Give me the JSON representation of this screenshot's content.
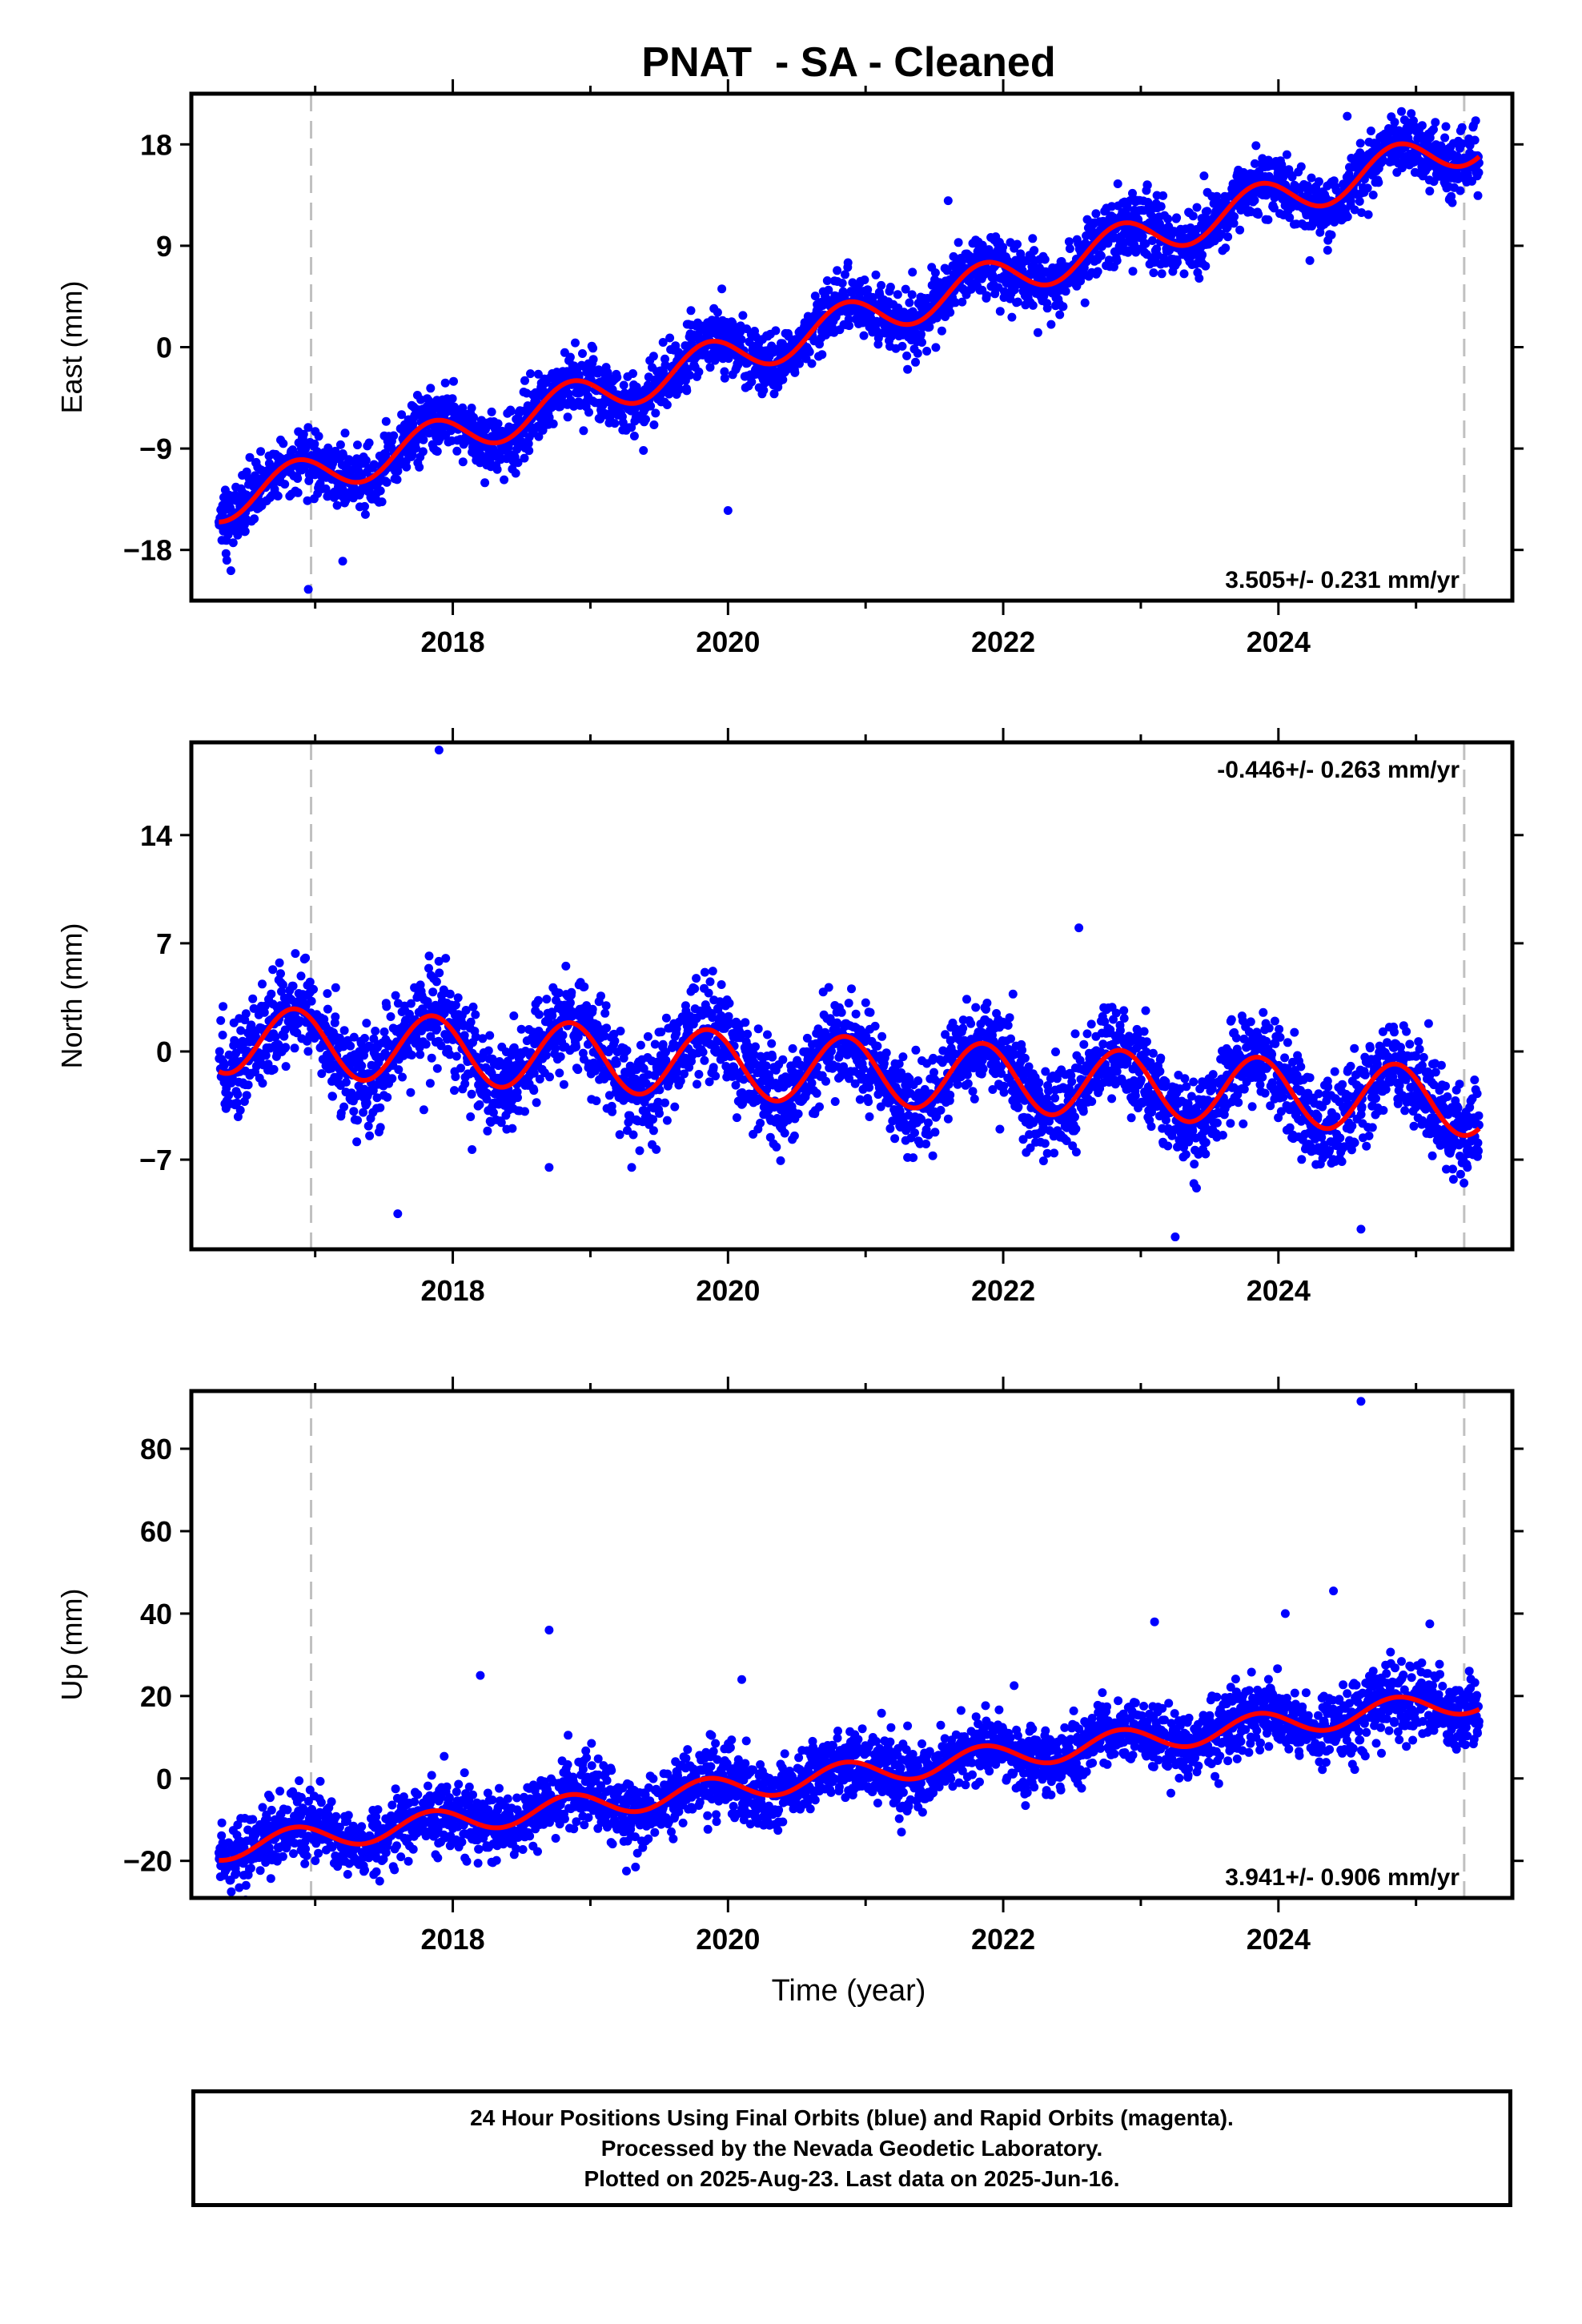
{
  "title": "PNAT  - SA - Cleaned",
  "xlabel": "Time (year)",
  "colors": {
    "points": "#0000ff",
    "fit": "#ff0000",
    "breaks": "#c0c0c0",
    "frame": "#000000"
  },
  "footer": {
    "line1": "24 Hour Positions Using Final Orbits (blue) and Rapid Orbits (magenta).",
    "line2": "Processed by the Nevada Geodetic Laboratory.",
    "line3": "Plotted on 2025-Aug-23. Last data on 2025-Jun-16."
  },
  "chart_data": [
    {
      "type": "scatter",
      "component": "east",
      "ylabel": "East (mm)",
      "xlim": [
        2016.1,
        2025.7
      ],
      "ylim": [
        -22.5,
        22.5
      ],
      "yticks": [
        -18,
        -9,
        0,
        9,
        18
      ],
      "xticks": [
        2018,
        2020,
        2022,
        2024
      ],
      "rate_label": "3.505+/- 0.231 mm/yr",
      "rate_position": "bottom-right",
      "break_lines_x": [
        2016.97,
        2025.35
      ],
      "x_start": 2016.3,
      "x_end": 2025.46,
      "fit": {
        "intercept": -13.8,
        "slope": 3.505,
        "annual_amp": 1.8,
        "noise_sd": 1.4
      },
      "outliers": [
        [
          2016.95,
          -21.5
        ],
        [
          2017.2,
          -19
        ],
        [
          2019.8,
          1.5
        ],
        [
          2020.0,
          -14.5
        ],
        [
          2021.6,
          13
        ],
        [
          2024.5,
          20.5
        ]
      ]
    },
    {
      "type": "scatter",
      "component": "north",
      "ylabel": "North (mm)",
      "xlim": [
        2016.1,
        2025.7
      ],
      "ylim": [
        -12.8,
        20
      ],
      "yticks": [
        -7,
        0,
        7,
        14
      ],
      "xticks": [
        2018,
        2020,
        2022,
        2024
      ],
      "rate_label": "-0.446+/- 0.263 mm/yr",
      "rate_position": "top-right",
      "break_lines_x": [
        2016.97,
        2025.35
      ],
      "x_start": 2016.3,
      "x_end": 2025.46,
      "fit": {
        "intercept": 0.8,
        "slope": -0.446,
        "annual_amp": 2.2,
        "noise_sd": 1.5
      },
      "outliers": [
        [
          2017.9,
          19.5
        ],
        [
          2017.6,
          -10.5
        ],
        [
          2018.7,
          -7.5
        ],
        [
          2019.3,
          -7.5
        ],
        [
          2023.25,
          -12
        ],
        [
          2024.6,
          -11.5
        ],
        [
          2022.55,
          8
        ]
      ]
    },
    {
      "type": "scatter",
      "component": "up",
      "ylabel": "Up (mm)",
      "xlim": [
        2016.1,
        2025.7
      ],
      "ylim": [
        -29,
        94
      ],
      "yticks": [
        -20,
        0,
        20,
        40,
        60,
        80
      ],
      "xticks": [
        2018,
        2020,
        2022,
        2024
      ],
      "rate_label": "3.941+/- 0.906 mm/yr",
      "rate_position": "bottom-right",
      "break_lines_x": [
        2016.97,
        2025.35
      ],
      "x_start": 2016.3,
      "x_end": 2025.46,
      "fit": {
        "intercept": -17,
        "slope": 3.941,
        "annual_amp": 3.0,
        "noise_sd": 4.2
      },
      "outliers": [
        [
          2024.6,
          91.5
        ],
        [
          2024.4,
          45.5
        ],
        [
          2018.7,
          36
        ],
        [
          2018.2,
          25
        ],
        [
          2020.1,
          24
        ],
        [
          2024.05,
          40
        ],
        [
          2025.1,
          37.5
        ],
        [
          2023.1,
          38
        ]
      ]
    }
  ]
}
